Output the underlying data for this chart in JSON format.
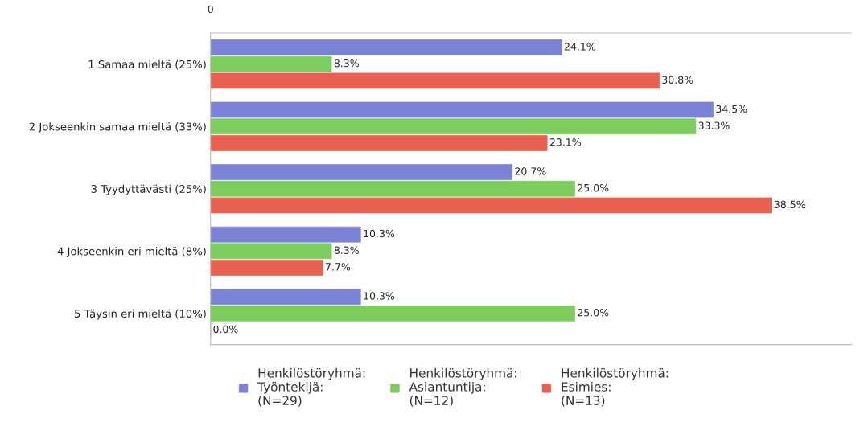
{
  "chart_data": {
    "type": "bar",
    "orientation": "horizontal",
    "categories": [
      "1 Samaa mieltä (25%)",
      "2 Jokseenkin samaa mieltä (33%)",
      "3 Tyydyttävästi (25%)",
      "4 Jokseenkin eri mieltä (8%)",
      "5 Täysin eri mieltä (10%)"
    ],
    "series": [
      {
        "name": "Henkilöstöryhmä:\nTyöntekijä:\n(N=29)",
        "color": "#7b83d6",
        "values": [
          24.1,
          34.5,
          20.7,
          10.3,
          10.3
        ],
        "value_labels": [
          "24.1%",
          "34.5%",
          "20.7%",
          "10.3%",
          "10.3%"
        ]
      },
      {
        "name": "Henkilöstöryhmä:\nAsiantuntija:\n(N=12)",
        "color": "#7dcc5e",
        "values": [
          8.3,
          33.3,
          25.0,
          8.3,
          25.0
        ],
        "value_labels": [
          "8.3%",
          "33.3%",
          "25.0%",
          "8.3%",
          "25.0%"
        ]
      },
      {
        "name": "Henkilöstöryhmä:\nEsimies:\n(N=13)",
        "color": "#e8604f",
        "values": [
          30.8,
          23.1,
          38.5,
          7.7,
          0.0
        ],
        "value_labels": [
          "30.8%",
          "23.1%",
          "38.5%",
          "7.7%",
          "0.0%"
        ]
      }
    ],
    "xlim": [
      0,
      44
    ],
    "annotations": [
      "0"
    ],
    "grid": false,
    "legend": "bottom"
  }
}
